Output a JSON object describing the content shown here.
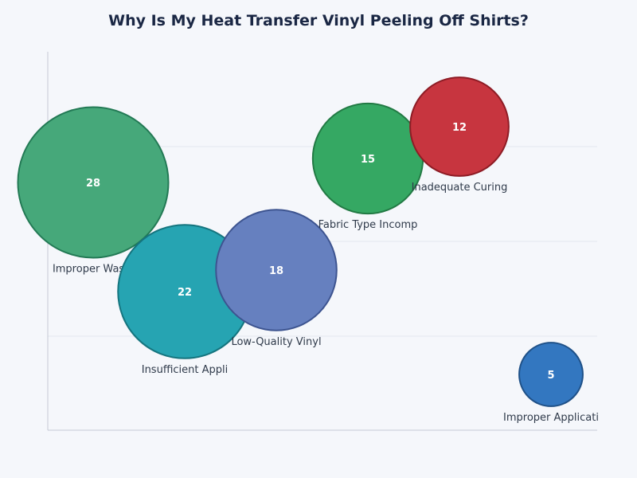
{
  "chart_data": {
    "type": "bubble",
    "title": "Why Is My Heat Transfer Vinyl Peeling Off Shirts?",
    "xlabel": "",
    "ylabel": "",
    "grid": true,
    "legend": "none",
    "points": [
      {
        "label": "Improper Washi",
        "value": 28,
        "color": "#46a87a",
        "stroke": "#237a55"
      },
      {
        "label": "Insufficient Appli",
        "value": 22,
        "color": "#26a4b2",
        "stroke": "#15757f"
      },
      {
        "label": "Low-Quality Vinyl",
        "value": 18,
        "color": "#6680bf",
        "stroke": "#3d5490"
      },
      {
        "label": "Fabric Type Incomp",
        "value": 15,
        "color": "#35a863",
        "stroke": "#227a44"
      },
      {
        "label": "Inadequate Curing",
        "value": 12,
        "color": "#c7353f",
        "stroke": "#8e1c25"
      },
      {
        "label": "Improper Applicati",
        "value": 5,
        "color": "#3377c0",
        "stroke": "#1f5188"
      }
    ]
  }
}
